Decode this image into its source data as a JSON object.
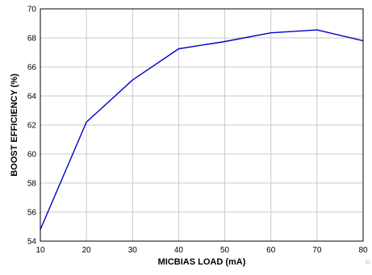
{
  "chart_data": {
    "type": "line",
    "title": "",
    "xlabel": "MICBIAS LOAD (mA)",
    "ylabel": "BOOST EFFICIENCY (%)",
    "xlim": [
      10,
      80
    ],
    "ylim": [
      54,
      70
    ],
    "x_ticks": [
      10,
      20,
      30,
      40,
      50,
      60,
      70,
      80
    ],
    "y_ticks": [
      54,
      56,
      58,
      60,
      62,
      64,
      66,
      68,
      70
    ],
    "grid": true,
    "line_color": "#0000cc",
    "grid_color": "#c8c8c8",
    "series": [
      {
        "x": [
          10,
          20,
          30,
          40,
          50,
          60,
          70,
          80
        ],
        "y": [
          54.8,
          62.2,
          65.1,
          67.25,
          67.75,
          68.35,
          68.55,
          67.8
        ]
      }
    ],
    "corner_text": "EI"
  }
}
